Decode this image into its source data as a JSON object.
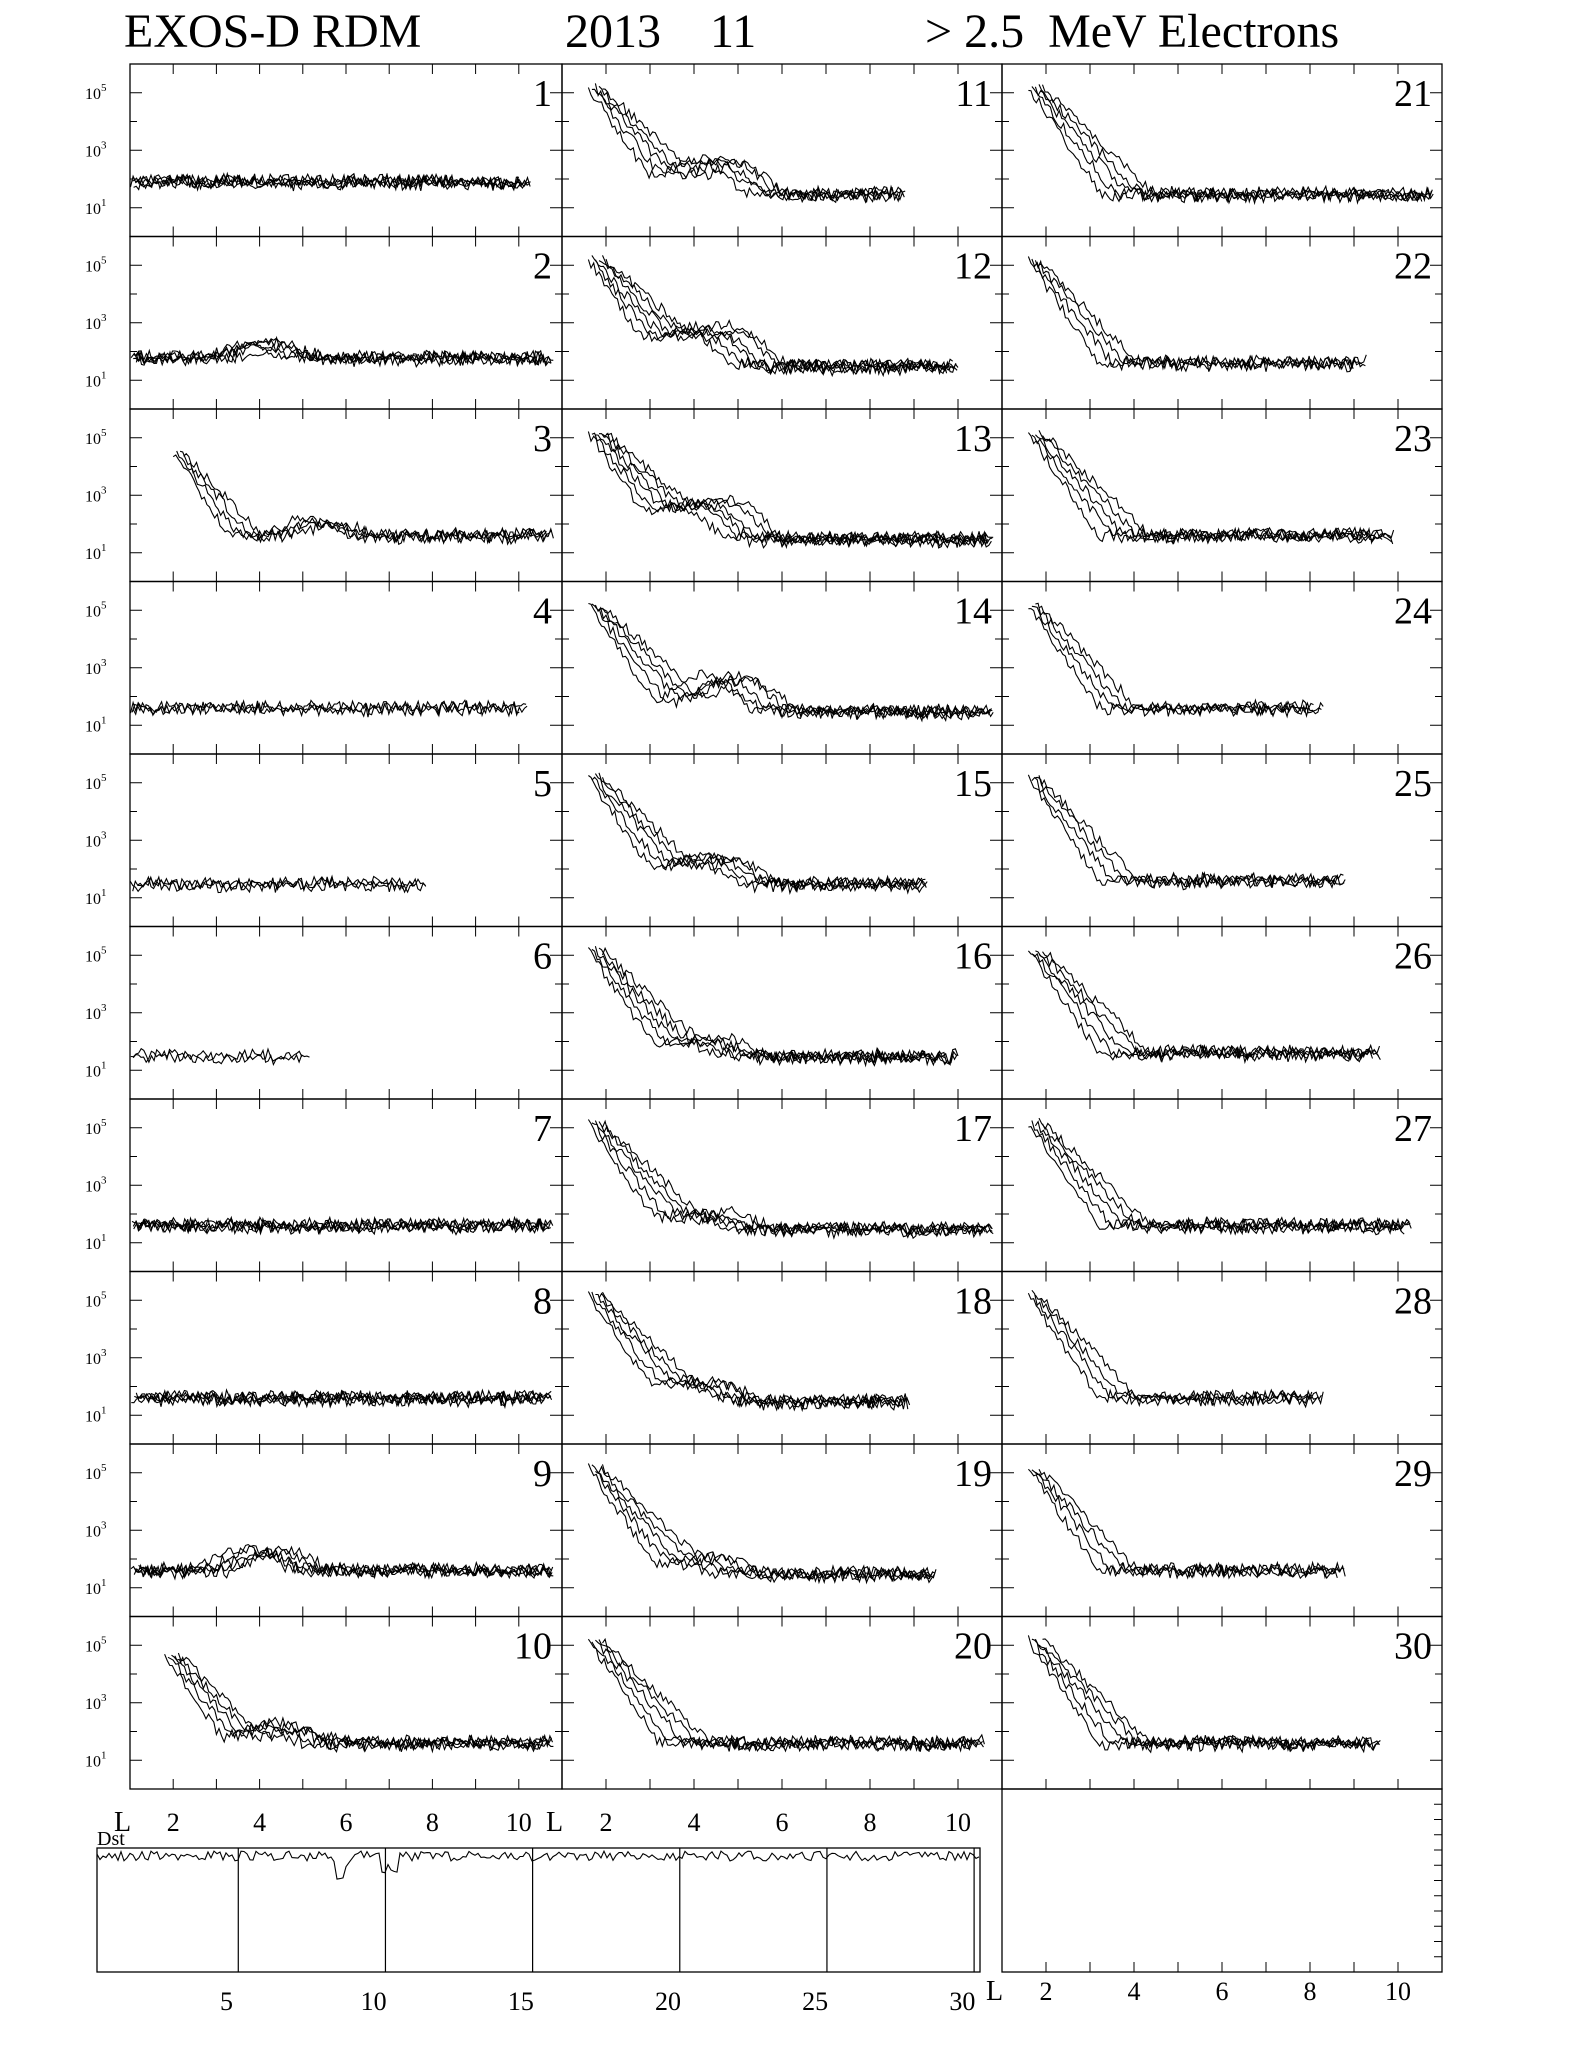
{
  "header": {
    "instrument": "EXOS-D RDM",
    "year": "2013",
    "month": "11",
    "particle": "> 2.5  MeV Electrons"
  },
  "y_ticks": [
    "10^5",
    "10^3",
    "10^1"
  ],
  "x_axis": {
    "prefix": "L",
    "ticks": [
      "2",
      "4",
      "6",
      "8",
      "10"
    ]
  },
  "dst": {
    "label": "Dst",
    "day_ticks": [
      "5",
      "10",
      "15",
      "20",
      "25",
      "30"
    ]
  },
  "chart_data": {
    "type": "line",
    "title": "EXOS-D RDM  2013 11  > 2.5 MeV Electrons",
    "xlabel": "L",
    "x_range": [
      1,
      11
    ],
    "y_scale": "log",
    "y_range": [
      1,
      1000000
    ],
    "panel_layout": "10 rows x 3 columns (day 1-10, 11-20, 21-30)",
    "panels": [
      {
        "day": 1,
        "baseline": 80,
        "rad_belt": null,
        "slot": null,
        "x_end": 10.3,
        "passes": 5
      },
      {
        "day": 2,
        "baseline": 60,
        "rad_belt": null,
        "slot": {
          "center": 4.2,
          "peak": 200
        },
        "x_end": 10.8,
        "passes": 5
      },
      {
        "day": 3,
        "baseline": 40,
        "rad_belt": {
          "start": 2.0,
          "peak": 30000
        },
        "slot": {
          "center": 5.5,
          "peak": 120
        },
        "x_end": 10.8,
        "passes": 4
      },
      {
        "day": 4,
        "baseline": 40,
        "rad_belt": null,
        "slot": null,
        "x_end": 10.2,
        "passes": 3
      },
      {
        "day": 5,
        "baseline": 30,
        "rad_belt": null,
        "slot": null,
        "x_end": 7.9,
        "passes": 3
      },
      {
        "day": 6,
        "baseline": 30,
        "rad_belt": null,
        "slot": null,
        "x_end": 5.2,
        "passes": 2
      },
      {
        "day": 7,
        "baseline": 40,
        "rad_belt": null,
        "slot": null,
        "x_end": 10.8,
        "passes": 5
      },
      {
        "day": 8,
        "baseline": 40,
        "rad_belt": null,
        "slot": null,
        "x_end": 10.8,
        "passes": 5
      },
      {
        "day": 9,
        "baseline": 40,
        "rad_belt": null,
        "slot": {
          "center": 4.2,
          "peak": 250
        },
        "x_end": 10.8,
        "passes": 5
      },
      {
        "day": 10,
        "baseline": 40,
        "rad_belt": {
          "start": 1.8,
          "peak": 50000
        },
        "slot": {
          "center": 4.6,
          "peak": 200
        },
        "x_end": 10.8,
        "passes": 5
      },
      {
        "day": 11,
        "baseline": 30,
        "rad_belt": {
          "start": 1.6,
          "peak": 150000
        },
        "slot": {
          "center": 4.6,
          "peak": 500
        },
        "x_end": 8.8,
        "passes": 5
      },
      {
        "day": 12,
        "baseline": 30,
        "rad_belt": {
          "start": 1.6,
          "peak": 150000
        },
        "slot": {
          "center": 4.4,
          "peak": 900
        },
        "x_end": 10.0,
        "passes": 6
      },
      {
        "day": 13,
        "baseline": 30,
        "rad_belt": {
          "start": 1.6,
          "peak": 150000
        },
        "slot": {
          "center": 4.3,
          "peak": 700
        },
        "x_end": 10.8,
        "passes": 6
      },
      {
        "day": 14,
        "baseline": 30,
        "rad_belt": {
          "start": 1.6,
          "peak": 150000
        },
        "slot": {
          "center": 4.8,
          "peak": 600
        },
        "x_end": 10.8,
        "passes": 5
      },
      {
        "day": 15,
        "baseline": 30,
        "rad_belt": {
          "start": 1.6,
          "peak": 150000
        },
        "slot": {
          "center": 4.5,
          "peak": 300
        },
        "x_end": 9.3,
        "passes": 5
      },
      {
        "day": 16,
        "baseline": 30,
        "rad_belt": {
          "start": 1.6,
          "peak": 150000
        },
        "slot": {
          "center": 4.3,
          "peak": 150
        },
        "x_end": 10.0,
        "passes": 5
      },
      {
        "day": 17,
        "baseline": 30,
        "rad_belt": {
          "start": 1.6,
          "peak": 150000
        },
        "slot": {
          "center": 4.4,
          "peak": 100
        },
        "x_end": 10.8,
        "passes": 5
      },
      {
        "day": 18,
        "baseline": 30,
        "rad_belt": {
          "start": 1.6,
          "peak": 150000
        },
        "slot": {
          "center": 4.2,
          "peak": 200
        },
        "x_end": 8.9,
        "passes": 5
      },
      {
        "day": 19,
        "baseline": 30,
        "rad_belt": {
          "start": 1.6,
          "peak": 150000
        },
        "slot": {
          "center": 4.2,
          "peak": 100
        },
        "x_end": 9.5,
        "passes": 5
      },
      {
        "day": 20,
        "baseline": 40,
        "rad_belt": {
          "start": 1.6,
          "peak": 150000
        },
        "slot": null,
        "x_end": 10.6,
        "passes": 5
      },
      {
        "day": 21,
        "baseline": 30,
        "rad_belt": {
          "start": 1.6,
          "peak": 150000
        },
        "slot": null,
        "x_end": 10.8,
        "passes": 5
      },
      {
        "day": 22,
        "baseline": 40,
        "rad_belt": {
          "start": 1.6,
          "peak": 150000
        },
        "slot": null,
        "x_end": 9.3,
        "passes": 4
      },
      {
        "day": 23,
        "baseline": 40,
        "rad_belt": {
          "start": 1.6,
          "peak": 150000
        },
        "slot": null,
        "x_end": 9.9,
        "passes": 5
      },
      {
        "day": 24,
        "baseline": 40,
        "rad_belt": {
          "start": 1.6,
          "peak": 150000
        },
        "slot": null,
        "x_end": 8.3,
        "passes": 4
      },
      {
        "day": 25,
        "baseline": 40,
        "rad_belt": {
          "start": 1.6,
          "peak": 150000
        },
        "slot": null,
        "x_end": 8.8,
        "passes": 4
      },
      {
        "day": 26,
        "baseline": 40,
        "rad_belt": {
          "start": 1.6,
          "peak": 150000
        },
        "slot": null,
        "x_end": 9.6,
        "passes": 5
      },
      {
        "day": 27,
        "baseline": 40,
        "rad_belt": {
          "start": 1.6,
          "peak": 150000
        },
        "slot": null,
        "x_end": 10.3,
        "passes": 5
      },
      {
        "day": 28,
        "baseline": 40,
        "rad_belt": {
          "start": 1.6,
          "peak": 150000
        },
        "slot": null,
        "x_end": 8.3,
        "passes": 4
      },
      {
        "day": 29,
        "baseline": 40,
        "rad_belt": {
          "start": 1.6,
          "peak": 150000
        },
        "slot": null,
        "x_end": 8.8,
        "passes": 4
      },
      {
        "day": 30,
        "baseline": 40,
        "rad_belt": {
          "start": 1.6,
          "peak": 150000
        },
        "slot": null,
        "x_end": 9.6,
        "passes": 5
      }
    ]
  }
}
